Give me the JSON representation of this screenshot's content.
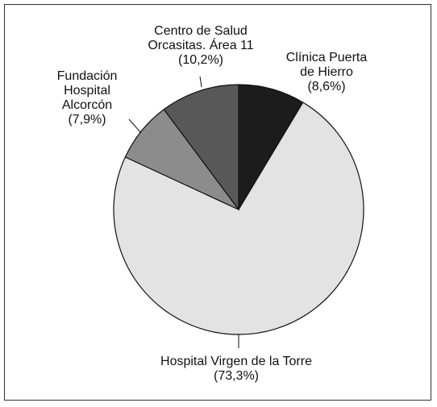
{
  "chart_data": {
    "type": "pie",
    "title": "",
    "slices": [
      {
        "lines": [
          "Clínica Puerta",
          "de Hierro"
        ],
        "value_label": "(8,6%)",
        "value": 8.6,
        "color": "#1c1c1c"
      },
      {
        "lines": [
          "Hospital Virgen de la Torre"
        ],
        "value_label": "(73,3%)",
        "value": 73.3,
        "color": "#e3e3e3"
      },
      {
        "lines": [
          "Fundación",
          "Hospital",
          "Alcorcón"
        ],
        "value_label": "(7,9%)",
        "value": 7.9,
        "color": "#8c8c8c"
      },
      {
        "lines": [
          "Centro de Salud",
          "Orcasitas. Área 11"
        ],
        "value_label": "(10,2%)",
        "value": 10.2,
        "color": "#585858"
      }
    ],
    "legend": "none"
  }
}
